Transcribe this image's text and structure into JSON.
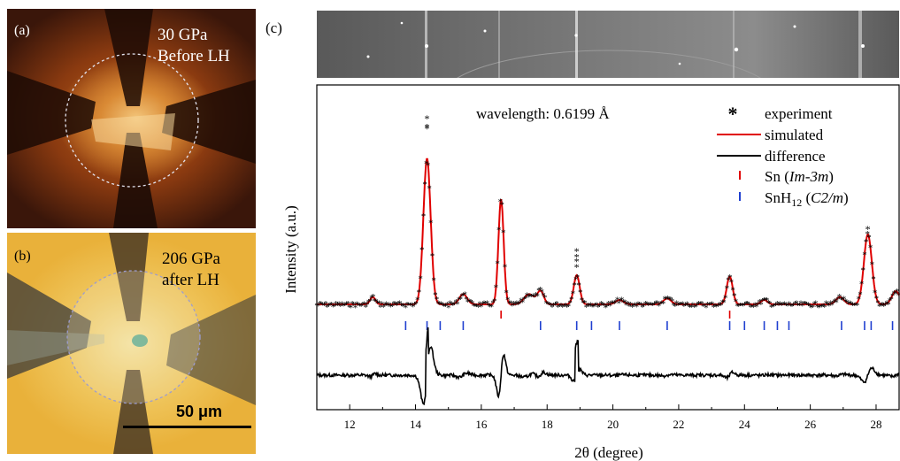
{
  "figure": {
    "panels": {
      "a": {
        "label": "(a)",
        "line1": "30 GPa",
        "line2": "Before LH"
      },
      "b": {
        "label": "(b)",
        "line1": "206 GPa",
        "line2": "after LH",
        "scalebar_label": "50 μm"
      },
      "c": {
        "label": "(c)"
      }
    }
  },
  "chart_data": {
    "type": "line",
    "xlabel": "2θ (degree)",
    "ylabel": "Intensity (a.u.)",
    "xlim": [
      11.0,
      28.7
    ],
    "x_ticks": [
      "12",
      "14",
      "16",
      "18",
      "20",
      "22",
      "24",
      "26",
      "28"
    ],
    "annotation": "wavelength: 0.6199 Å",
    "legend": {
      "position": "top-right",
      "entries": [
        {
          "symbol": "*",
          "label": "experiment",
          "color": "#000000"
        },
        {
          "symbol": "line",
          "label": "simulated",
          "color": "#e00000"
        },
        {
          "symbol": "line",
          "label": "difference",
          "color": "#000000"
        },
        {
          "symbol": "tick",
          "label": "Sn",
          "phase": "Im-3m",
          "color": "#e00000"
        },
        {
          "symbol": "tick",
          "label": "SnH",
          "sub": "12",
          "phase": "C2/m",
          "color": "#1f3fd0"
        }
      ]
    },
    "peaks": [
      {
        "center": 12.7,
        "height": 0.05,
        "width": 0.08
      },
      {
        "center": 14.35,
        "height": 1.0,
        "width": 0.11
      },
      {
        "center": 15.45,
        "height": 0.07,
        "width": 0.12
      },
      {
        "center": 16.6,
        "height": 0.72,
        "width": 0.08
      },
      {
        "center": 17.45,
        "height": 0.07,
        "width": 0.15
      },
      {
        "center": 17.8,
        "height": 0.09,
        "width": 0.1
      },
      {
        "center": 18.9,
        "height": 0.2,
        "width": 0.09
      },
      {
        "center": 20.2,
        "height": 0.03,
        "width": 0.12
      },
      {
        "center": 21.65,
        "height": 0.04,
        "width": 0.12
      },
      {
        "center": 23.55,
        "height": 0.19,
        "width": 0.09
      },
      {
        "center": 24.6,
        "height": 0.03,
        "width": 0.1
      },
      {
        "center": 26.9,
        "height": 0.05,
        "width": 0.12
      },
      {
        "center": 27.75,
        "height": 0.48,
        "width": 0.12
      },
      {
        "center": 28.6,
        "height": 0.09,
        "width": 0.12
      }
    ],
    "experiment_overshoots": [
      {
        "x": 14.35,
        "values": [
          1.28,
          1.22,
          1.21
        ]
      },
      {
        "x": 18.9,
        "values": [
          0.37,
          0.33,
          0.3,
          0.26
        ]
      },
      {
        "x": 27.75,
        "values": [
          0.52
        ]
      }
    ],
    "sn_ticks": [
      16.6,
      23.55
    ],
    "snh12_ticks": [
      13.7,
      14.35,
      14.75,
      15.45,
      17.8,
      18.9,
      19.35,
      20.2,
      21.65,
      23.55,
      24.0,
      24.6,
      25.0,
      25.35,
      26.95,
      27.65,
      27.85,
      28.5
    ]
  }
}
